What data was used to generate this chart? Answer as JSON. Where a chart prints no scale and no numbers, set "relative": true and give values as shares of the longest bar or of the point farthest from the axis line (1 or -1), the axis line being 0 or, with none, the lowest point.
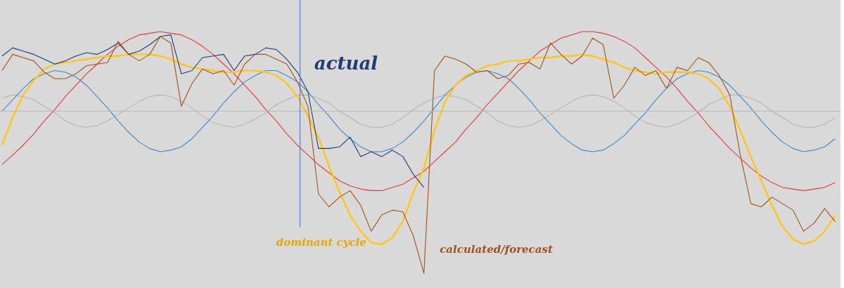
{
  "chart_data": {
    "type": "line",
    "relative": true,
    "legend": false,
    "grid": false,
    "marker": "none",
    "categories": [
      null,
      null,
      null,
      null,
      null,
      null,
      null,
      null,
      null,
      null,
      null,
      null,
      null,
      null,
      null,
      null,
      null,
      null,
      null,
      null,
      null,
      null,
      null,
      null,
      null,
      null,
      null,
      null,
      null,
      null,
      null,
      null,
      null,
      null,
      null,
      null,
      null,
      null,
      null,
      null,
      null,
      null,
      null,
      null,
      null,
      null,
      null,
      null,
      null,
      null,
      null,
      null,
      null,
      null,
      null,
      null,
      null,
      null,
      null,
      null,
      null,
      null,
      null,
      null,
      null,
      null,
      null,
      null,
      null,
      null,
      null,
      null,
      null,
      null,
      null,
      null,
      null,
      null,
      null,
      null
    ],
    "series": [
      {
        "color": "#b4b4b4",
        "values": [
          0.08,
          0.1,
          0.09,
          0.07,
          0.03,
          -0.01,
          -0.06,
          -0.09,
          -0.1,
          -0.09,
          -0.06,
          -0.02,
          0.02,
          0.06,
          0.09,
          0.1,
          0.09,
          0.06,
          0.02,
          -0.03,
          -0.07,
          -0.09,
          -0.1,
          -0.08,
          -0.05,
          -0.01,
          0.04,
          0.07,
          0.1,
          0.1,
          0.08,
          0.05,
          0.0,
          -0.04,
          -0.08,
          -0.1,
          -0.1,
          -0.08,
          -0.04,
          0.01,
          0.05,
          0.08,
          0.1,
          0.09,
          0.07,
          0.03,
          -0.01,
          -0.06,
          -0.09,
          -0.1,
          -0.09,
          -0.06,
          -0.02,
          0.02,
          0.06,
          0.09,
          0.1,
          0.09,
          0.06,
          0.02,
          -0.03,
          -0.07,
          -0.09,
          -0.1,
          -0.08,
          -0.05,
          -0.01,
          0.04,
          0.07,
          0.1,
          0.1,
          0.08,
          0.05,
          0.0,
          -0.04,
          -0.08,
          -0.1,
          -0.1,
          -0.08,
          -0.04
        ]
      },
      {
        "color": "#3f88c5",
        "values": [
          0.0,
          0.07,
          0.14,
          0.2,
          0.23,
          0.25,
          0.24,
          0.21,
          0.16,
          0.09,
          0.02,
          -0.06,
          -0.13,
          -0.19,
          -0.23,
          -0.25,
          -0.24,
          -0.22,
          -0.17,
          -0.1,
          -0.03,
          0.05,
          0.12,
          0.18,
          0.22,
          0.25,
          0.25,
          0.22,
          0.18,
          0.12,
          0.04,
          -0.03,
          -0.11,
          -0.17,
          -0.22,
          -0.25,
          -0.25,
          -0.23,
          -0.19,
          -0.13,
          -0.06,
          0.02,
          0.1,
          0.16,
          0.21,
          0.24,
          0.25,
          0.23,
          0.2,
          0.14,
          0.07,
          -0.01,
          -0.08,
          -0.15,
          -0.2,
          -0.24,
          -0.25,
          -0.24,
          -0.2,
          -0.15,
          -0.08,
          -0.01,
          0.07,
          0.14,
          0.2,
          0.23,
          0.25,
          0.24,
          0.21,
          0.16,
          0.09,
          0.02,
          -0.06,
          -0.13,
          -0.19,
          -0.23,
          -0.25,
          -0.24,
          -0.22,
          -0.17
        ]
      },
      {
        "color": "#e8373d",
        "values": [
          -0.33,
          -0.27,
          -0.21,
          -0.14,
          -0.06,
          0.01,
          0.09,
          0.16,
          0.23,
          0.29,
          0.35,
          0.4,
          0.44,
          0.47,
          0.48,
          0.49,
          0.48,
          0.47,
          0.44,
          0.4,
          0.35,
          0.29,
          0.23,
          0.16,
          0.09,
          0.01,
          -0.06,
          -0.14,
          -0.21,
          -0.27,
          -0.33,
          -0.38,
          -0.43,
          -0.46,
          -0.48,
          -0.49,
          -0.49,
          -0.47,
          -0.45,
          -0.41,
          -0.37,
          -0.31,
          -0.25,
          -0.19,
          -0.11,
          -0.04,
          0.04,
          0.11,
          0.18,
          0.25,
          0.31,
          0.37,
          0.41,
          0.45,
          0.47,
          0.49,
          0.49,
          0.48,
          0.46,
          0.43,
          0.39,
          0.33,
          0.27,
          0.21,
          0.14,
          0.06,
          -0.01,
          -0.09,
          -0.16,
          -0.23,
          -0.29,
          -0.35,
          -0.4,
          -0.44,
          -0.47,
          -0.48,
          -0.49,
          -0.48,
          -0.47,
          -0.44
        ]
      },
      {
        "name": "dominant cycle",
        "color": "#ffc61a",
        "values": [
          -0.21,
          -0.04,
          0.1,
          0.19,
          0.26,
          0.29,
          0.3,
          0.31,
          0.32,
          0.33,
          0.34,
          0.34,
          0.35,
          0.35,
          0.35,
          0.34,
          0.32,
          0.29,
          0.27,
          0.26,
          0.25,
          0.24,
          0.24,
          0.25,
          0.25,
          0.24,
          0.22,
          0.17,
          0.09,
          -0.03,
          -0.16,
          -0.34,
          -0.5,
          -0.64,
          -0.74,
          -0.81,
          -0.82,
          -0.78,
          -0.68,
          -0.5,
          -0.35,
          -0.12,
          0.06,
          0.16,
          0.22,
          0.25,
          0.28,
          0.29,
          0.31,
          0.31,
          0.32,
          0.33,
          0.33,
          0.34,
          0.34,
          0.35,
          0.34,
          0.32,
          0.3,
          0.27,
          0.25,
          0.24,
          0.23,
          0.24,
          0.24,
          0.24,
          0.23,
          0.2,
          0.14,
          0.03,
          -0.12,
          -0.28,
          -0.43,
          -0.58,
          -0.71,
          -0.79,
          -0.82,
          -0.8,
          -0.74,
          -0.64
        ]
      },
      {
        "name": "actual",
        "color": "#1f3b7a",
        "values": [
          0.34,
          0.39,
          0.37,
          0.35,
          0.32,
          0.29,
          0.31,
          0.34,
          0.36,
          0.35,
          0.38,
          0.42,
          0.35,
          0.37,
          0.41,
          0.46,
          0.47,
          0.23,
          0.25,
          0.33,
          0.34,
          0.35,
          0.25,
          0.34,
          0.35,
          0.39,
          0.38,
          0.32,
          0.24,
          0.12,
          -0.23,
          -0.23,
          -0.22,
          -0.16,
          -0.28,
          -0.25,
          -0.28,
          -0.24,
          -0.28,
          -0.39,
          -0.47,
          null,
          null,
          null,
          null,
          null,
          null,
          null,
          null,
          null,
          null,
          null,
          null,
          null,
          null,
          null,
          null,
          null,
          null,
          null,
          null,
          null,
          null,
          null,
          null,
          null,
          null,
          null,
          null,
          null,
          null,
          null,
          null,
          null,
          null,
          null,
          null,
          null,
          null,
          null
        ]
      },
      {
        "name": "calculated/forecast",
        "color": "#a0521a",
        "values": [
          0.25,
          0.35,
          0.33,
          0.31,
          0.24,
          0.2,
          0.2,
          0.23,
          0.28,
          0.29,
          0.3,
          0.43,
          0.35,
          0.31,
          0.35,
          0.46,
          0.42,
          0.03,
          0.17,
          0.26,
          0.23,
          0.25,
          0.16,
          0.29,
          0.35,
          0.35,
          0.32,
          0.29,
          0.18,
          0.03,
          -0.51,
          -0.59,
          -0.53,
          -0.49,
          -0.58,
          -0.74,
          -0.64,
          -0.61,
          -0.62,
          -0.77,
          -1.0,
          0.25,
          0.34,
          0.32,
          0.29,
          0.24,
          0.25,
          0.2,
          0.22,
          0.29,
          0.3,
          0.26,
          0.42,
          0.35,
          0.29,
          0.34,
          0.45,
          0.41,
          0.08,
          0.16,
          0.27,
          0.22,
          0.25,
          0.14,
          0.27,
          0.25,
          0.33,
          0.3,
          0.22,
          0.1,
          -0.27,
          -0.57,
          -0.59,
          -0.53,
          -0.57,
          -0.61,
          -0.74,
          -0.69,
          -0.6,
          -0.68
        ]
      }
    ]
  }
}
